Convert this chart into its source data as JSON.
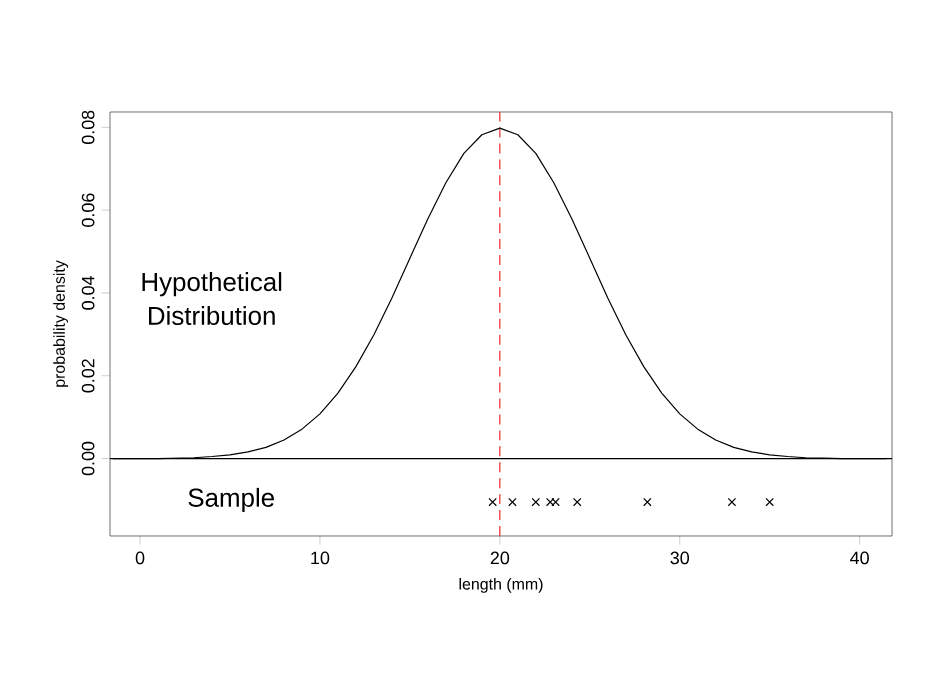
{
  "chart_data": {
    "type": "line",
    "xlabel": "length (mm)",
    "ylabel": "probability density",
    "xlim": [
      -1.67,
      41.8
    ],
    "ylim": [
      -0.0187,
      0.0837
    ],
    "xticks": [
      0,
      10,
      20,
      30,
      40
    ],
    "yticks": [
      {
        "value": 0,
        "label": "0.00"
      },
      {
        "value": 0.02,
        "label": "0.02"
      },
      {
        "value": 0.04,
        "label": "0.04"
      },
      {
        "value": 0.06,
        "label": "0.06"
      },
      {
        "value": 0.08,
        "label": "0.08"
      }
    ],
    "series": [
      {
        "color": "#000000",
        "marker": "none",
        "x": [
          -1.5,
          0,
          1,
          2,
          3,
          4,
          5,
          6,
          7,
          8,
          9,
          10,
          11,
          12,
          13,
          14,
          15,
          16,
          17,
          18,
          19,
          20,
          21,
          22,
          23,
          24,
          25,
          26,
          27,
          28,
          29,
          30,
          31,
          32,
          33,
          34,
          35,
          36,
          37,
          38,
          39,
          40,
          41.5
        ],
        "values": [
          0,
          0,
          0,
          0.0001,
          0.0002,
          0.0005,
          0.0009,
          0.0016,
          0.0027,
          0.0045,
          0.0071,
          0.0108,
          0.0158,
          0.0222,
          0.0299,
          0.0388,
          0.0484,
          0.0579,
          0.0666,
          0.0737,
          0.0782,
          0.0798,
          0.0782,
          0.0737,
          0.0666,
          0.0579,
          0.0484,
          0.0388,
          0.0299,
          0.0222,
          0.0158,
          0.0108,
          0.0071,
          0.0045,
          0.0027,
          0.0016,
          0.0009,
          0.0005,
          0.0002,
          0.0001,
          0,
          0,
          0
        ]
      },
      {
        "type": "scatter",
        "color": "#000000",
        "marker": "cross",
        "x": [
          19.6,
          20.7,
          22.0,
          22.8,
          23.1,
          24.3,
          28.2,
          32.9,
          35.0
        ],
        "values": [
          -0.0105,
          -0.0105,
          -0.0105,
          -0.0105,
          -0.0105,
          -0.0105,
          -0.0105,
          -0.0105,
          -0.0105
        ]
      }
    ],
    "ref_lines": [
      {
        "axis": "x",
        "value": 20,
        "color": "#e8282b",
        "line_style": "dashed"
      },
      {
        "axis": "y",
        "value": 0,
        "color": "#000000",
        "line_style": "solid"
      }
    ],
    "annotations": [
      "Hypothetical Distribution",
      "Sample"
    ]
  }
}
